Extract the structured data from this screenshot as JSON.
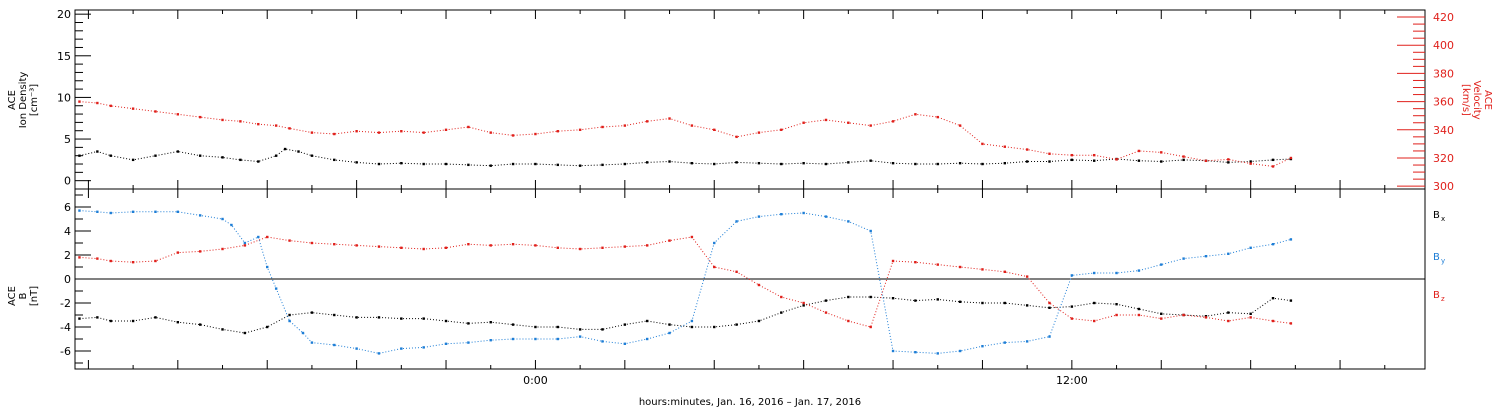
{
  "chart_data": [
    {
      "type": "scatter",
      "panel": "plasma",
      "ylabel_left": [
        "ACE",
        "Ion Density",
        "[cm⁻³]"
      ],
      "ylabel_right": [
        "ACE",
        "Velocity",
        "[km/s]"
      ],
      "ylim_left": [
        -1,
        20.5
      ],
      "ylim_right": [
        298,
        425
      ],
      "yticks_left": [
        "0",
        "5",
        "10",
        "15",
        "20"
      ],
      "yticks_right": [
        "300",
        "320",
        "340",
        "360",
        "380",
        "400",
        "420"
      ],
      "grid": false,
      "x_hours": [
        -10.3,
        19.9
      ],
      "series": [
        {
          "axis": "left",
          "color": "#000000",
          "x": [
            -10.2,
            -9.8,
            -9.5,
            -9,
            -8.5,
            -8,
            -7.5,
            -7,
            -6.6,
            -6.2,
            -5.8,
            -5.6,
            -5.3,
            -5,
            -4.5,
            -4,
            -3.5,
            -3,
            -2.5,
            -2,
            -1.5,
            -1,
            -0.5,
            0,
            0.5,
            1,
            1.5,
            2,
            2.5,
            3,
            3.5,
            4,
            4.5,
            5,
            5.5,
            6,
            6.5,
            7,
            7.5,
            8,
            8.5,
            9,
            9.5,
            10,
            10.5,
            11,
            11.5,
            12,
            12.5,
            13,
            13.5,
            14,
            14.5,
            15,
            15.5,
            16,
            16.5,
            16.9
          ],
          "y": [
            3.0,
            3.5,
            3.0,
            2.5,
            3.0,
            3.5,
            3.0,
            2.8,
            2.5,
            2.3,
            3.0,
            3.8,
            3.5,
            3.0,
            2.5,
            2.2,
            2.0,
            2.1,
            2.0,
            2.0,
            1.9,
            1.8,
            2.0,
            2.0,
            1.9,
            1.8,
            1.9,
            2.0,
            2.2,
            2.3,
            2.1,
            2.0,
            2.2,
            2.1,
            2.0,
            2.1,
            2.0,
            2.2,
            2.4,
            2.1,
            2.0,
            2.0,
            2.1,
            2.0,
            2.1,
            2.3,
            2.3,
            2.5,
            2.4,
            2.6,
            2.4,
            2.3,
            2.5,
            2.4,
            2.2,
            2.3,
            2.5,
            2.6
          ]
        },
        {
          "axis": "right",
          "color": "#e0201b",
          "x": [
            -10.2,
            -9.8,
            -9.5,
            -9,
            -8.5,
            -8,
            -7.5,
            -7,
            -6.6,
            -6.2,
            -5.8,
            -5.5,
            -5,
            -4.5,
            -4,
            -3.5,
            -3,
            -2.5,
            -2,
            -1.5,
            -1,
            -0.5,
            0,
            0.5,
            1,
            1.5,
            2,
            2.5,
            3,
            3.5,
            4,
            4.5,
            5,
            5.5,
            6,
            6.5,
            7,
            7.5,
            8,
            8.5,
            9,
            9.5,
            10,
            10.5,
            11,
            11.5,
            12,
            12.5,
            13,
            13.5,
            14,
            14.5,
            15,
            15.5,
            16,
            16.5,
            16.9
          ],
          "y": [
            360,
            359,
            357,
            355,
            353,
            351,
            349,
            347,
            346,
            344,
            343,
            341,
            338,
            337,
            339,
            338,
            339,
            338,
            340,
            342,
            338,
            336,
            337,
            339,
            340,
            342,
            343,
            346,
            348,
            343,
            340,
            335,
            338,
            340,
            345,
            347,
            345,
            343,
            346,
            351,
            349,
            343,
            330,
            328,
            326,
            323,
            322,
            322,
            319,
            325,
            324,
            321,
            318,
            319,
            316,
            314,
            320
          ]
        }
      ]
    },
    {
      "type": "scatter",
      "panel": "magnetic-field",
      "ylabel_left": [
        "ACE",
        "B",
        "[nT]"
      ],
      "ylim": [
        -7.5,
        7.5
      ],
      "yticks": [
        "-6",
        "-4",
        "-2",
        "0",
        "2",
        "4",
        "6"
      ],
      "zero_line": true,
      "grid": false,
      "x_hours": [
        -10.3,
        19.9
      ],
      "legend_labels": [
        "B",
        "B",
        "B"
      ],
      "legend_subscripts": [
        "x",
        "y",
        "z"
      ],
      "series": [
        {
          "color": "#000000",
          "x": [
            -10.2,
            -9.8,
            -9.5,
            -9,
            -8.5,
            -8,
            -7.5,
            -7,
            -6.5,
            -6,
            -5.5,
            -5,
            -4.5,
            -4,
            -3.5,
            -3,
            -2.5,
            -2,
            -1.5,
            -1,
            -0.5,
            0,
            0.5,
            1,
            1.5,
            2,
            2.5,
            3,
            3.5,
            4,
            4.5,
            5,
            5.5,
            6,
            6.5,
            7,
            7.5,
            8,
            8.5,
            9,
            9.5,
            10,
            10.5,
            11,
            11.5,
            12,
            12.5,
            13,
            13.5,
            14,
            14.5,
            15,
            15.5,
            16,
            16.5,
            16.9
          ],
          "y": [
            -3.3,
            -3.2,
            -3.5,
            -3.5,
            -3.2,
            -3.6,
            -3.8,
            -4.2,
            -4.5,
            -4.0,
            -3.0,
            -2.8,
            -3.0,
            -3.2,
            -3.2,
            -3.3,
            -3.3,
            -3.5,
            -3.7,
            -3.6,
            -3.8,
            -4.0,
            -4.0,
            -4.2,
            -4.2,
            -3.8,
            -3.5,
            -3.8,
            -4.0,
            -4.0,
            -3.8,
            -3.5,
            -2.8,
            -2.2,
            -1.8,
            -1.5,
            -1.5,
            -1.6,
            -1.8,
            -1.7,
            -1.9,
            -2.0,
            -2.0,
            -2.2,
            -2.4,
            -2.3,
            -2.0,
            -2.1,
            -2.5,
            -2.9,
            -3.0,
            -3.1,
            -2.8,
            -2.9,
            -1.6,
            -1.8
          ]
        },
        {
          "color": "#1e7ed6",
          "x": [
            -10.2,
            -9.8,
            -9.5,
            -9,
            -8.5,
            -8,
            -7.5,
            -7,
            -6.8,
            -6.5,
            -6.2,
            -6,
            -5.8,
            -5.5,
            -5.2,
            -5,
            -4.5,
            -4,
            -3.5,
            -3,
            -2.5,
            -2,
            -1.5,
            -1,
            -0.5,
            0,
            0.5,
            1,
            1.5,
            2,
            2.5,
            3,
            3.5,
            4,
            4.5,
            5,
            5.5,
            6,
            6.5,
            7,
            7.5,
            8,
            8.5,
            9,
            9.5,
            10,
            10.5,
            11,
            11.5,
            12,
            12.5,
            13,
            13.5,
            14,
            14.5,
            15,
            15.5,
            16,
            16.5,
            16.9
          ],
          "y": [
            5.7,
            5.6,
            5.5,
            5.6,
            5.6,
            5.6,
            5.3,
            5.0,
            4.5,
            3.0,
            3.5,
            1.0,
            -0.8,
            -3.5,
            -4.5,
            -5.3,
            -5.5,
            -5.8,
            -6.2,
            -5.8,
            -5.7,
            -5.4,
            -5.3,
            -5.1,
            -5.0,
            -5.0,
            -5.0,
            -4.8,
            -5.2,
            -5.4,
            -5.0,
            -4.5,
            -3.5,
            3.0,
            4.8,
            5.2,
            5.4,
            5.5,
            5.2,
            4.8,
            4.0,
            -6.0,
            -6.1,
            -6.2,
            -6.0,
            -5.6,
            -5.3,
            -5.2,
            -4.8,
            0.3,
            0.5,
            0.5,
            0.7,
            1.2,
            1.7,
            1.9,
            2.1,
            2.6,
            2.9,
            3.3
          ]
        },
        {
          "color": "#e0201b",
          "x": [
            -10.2,
            -9.8,
            -9.5,
            -9,
            -8.5,
            -8,
            -7.5,
            -7,
            -6.5,
            -6,
            -5.5,
            -5,
            -4.5,
            -4,
            -3.5,
            -3,
            -2.5,
            -2,
            -1.5,
            -1,
            -0.5,
            0,
            0.5,
            1,
            1.5,
            2,
            2.5,
            3,
            3.5,
            4,
            4.5,
            5,
            5.5,
            6,
            6.5,
            7,
            7.5,
            8,
            8.5,
            9,
            9.5,
            10,
            10.5,
            11,
            11.5,
            12,
            12.5,
            13,
            13.5,
            14,
            14.5,
            15,
            15.5,
            16,
            16.5,
            16.9
          ],
          "y": [
            1.8,
            1.7,
            1.5,
            1.4,
            1.5,
            2.2,
            2.3,
            2.5,
            2.8,
            3.5,
            3.2,
            3.0,
            2.9,
            2.8,
            2.7,
            2.6,
            2.5,
            2.6,
            2.9,
            2.8,
            2.9,
            2.8,
            2.6,
            2.5,
            2.6,
            2.7,
            2.8,
            3.2,
            3.5,
            1.0,
            0.6,
            -0.5,
            -1.5,
            -2.0,
            -2.8,
            -3.5,
            -4.0,
            1.5,
            1.4,
            1.2,
            1.0,
            0.8,
            0.6,
            0.2,
            -2.0,
            -3.3,
            -3.5,
            -3.0,
            -3.0,
            -3.3,
            -3.0,
            -3.2,
            -3.5,
            -3.2,
            -3.5,
            -3.7
          ]
        }
      ]
    }
  ],
  "x_axis": {
    "tick_labels": [
      "0:00",
      "12:00"
    ],
    "tick_hours": [
      0,
      12
    ],
    "major_every_hours": 2,
    "xlabel": "hours:minutes, Jan. 16, 2016 – Jan. 17, 2016"
  }
}
